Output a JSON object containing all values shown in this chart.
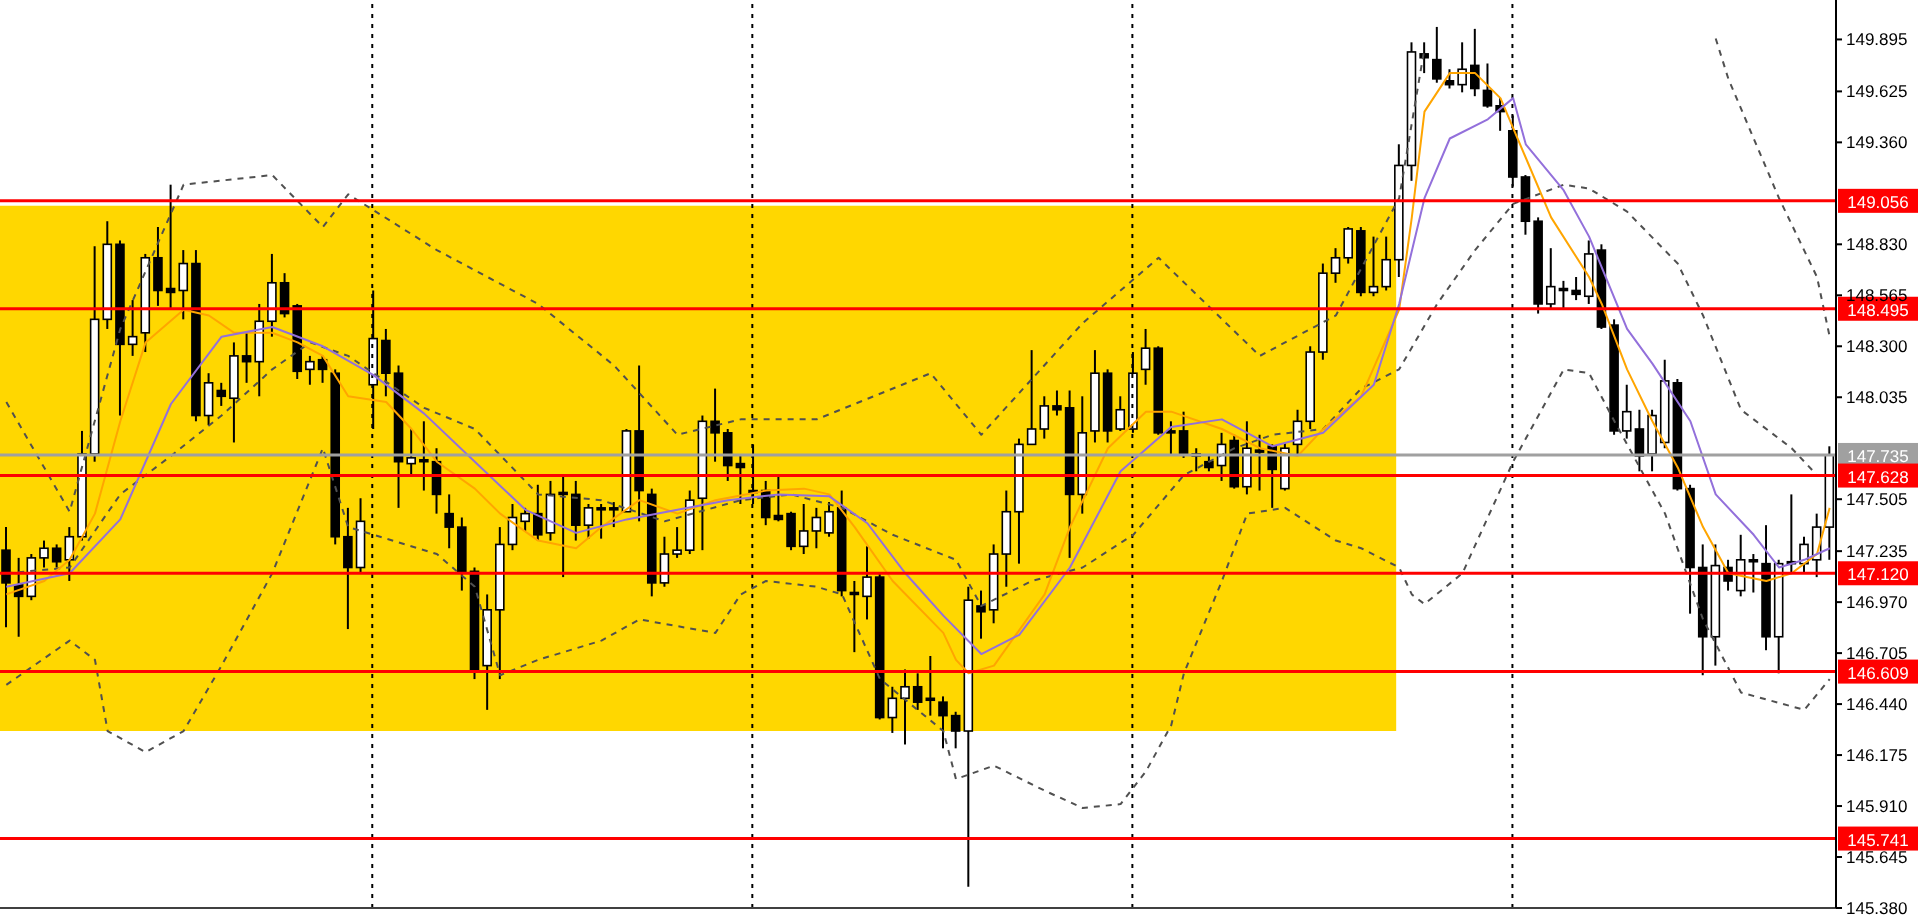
{
  "chart_data": {
    "type": "candlestick",
    "color": "#000000",
    "tick_labels": "y",
    "categories": [
      null,
      null,
      null,
      null,
      null,
      null,
      null,
      null,
      null,
      null,
      null,
      null,
      null,
      null,
      null,
      null,
      null,
      null,
      null,
      null,
      null,
      null,
      null,
      null,
      null,
      null,
      null,
      null,
      null,
      null,
      null,
      null,
      null,
      null,
      null,
      null,
      null,
      null,
      null,
      null,
      null,
      null,
      null,
      null,
      null,
      null,
      null,
      null,
      null,
      null,
      null,
      null,
      null,
      null,
      null,
      null,
      null,
      null,
      null,
      null,
      null,
      null,
      null,
      null,
      null,
      null,
      null,
      null,
      null,
      null,
      null,
      null,
      null,
      null,
      null,
      null,
      null,
      null,
      null,
      null,
      null,
      null,
      null,
      null,
      null,
      null,
      null,
      null,
      null,
      null,
      null,
      null,
      null,
      null,
      null,
      null,
      null,
      null,
      null,
      null,
      null,
      null,
      null,
      null,
      null,
      null,
      null,
      null,
      null,
      null,
      null,
      null,
      null,
      null,
      null,
      null,
      null,
      null,
      null,
      null,
      null,
      null,
      null,
      null,
      null,
      null,
      null,
      null,
      null,
      null,
      null,
      null,
      null,
      null,
      null,
      null,
      null,
      null,
      null,
      null,
      null,
      null,
      null,
      null,
      null
    ],
    "ohlc": [
      [
        147.24,
        147.36,
        146.84,
        147.07
      ],
      [
        147.06,
        147.2,
        146.79,
        147.0
      ],
      [
        147.0,
        147.22,
        146.98,
        147.2
      ],
      [
        147.2,
        147.29,
        147.15,
        147.25
      ],
      [
        147.25,
        147.27,
        147.15,
        147.18
      ],
      [
        147.19,
        147.36,
        147.08,
        147.31
      ],
      [
        147.31,
        147.86,
        147.29,
        147.74
      ],
      [
        147.74,
        148.82,
        147.7,
        148.44
      ],
      [
        148.44,
        148.95,
        148.39,
        148.83
      ],
      [
        148.83,
        148.85,
        147.94,
        148.31
      ],
      [
        148.31,
        148.54,
        148.25,
        148.35
      ],
      [
        148.37,
        148.78,
        148.27,
        148.76
      ],
      [
        148.76,
        148.92,
        148.51,
        148.59
      ],
      [
        148.6,
        149.14,
        148.49,
        148.58
      ],
      [
        148.59,
        148.8,
        148.44,
        148.73
      ],
      [
        148.73,
        148.8,
        147.91,
        147.94
      ],
      [
        147.94,
        148.16,
        147.89,
        148.11
      ],
      [
        148.07,
        148.11,
        147.99,
        148.04
      ],
      [
        148.03,
        148.32,
        147.8,
        148.25
      ],
      [
        148.25,
        148.37,
        148.11,
        148.22
      ],
      [
        148.22,
        148.52,
        148.04,
        148.43
      ],
      [
        148.43,
        148.78,
        148.35,
        148.63
      ],
      [
        148.63,
        148.68,
        148.45,
        148.47
      ],
      [
        148.51,
        148.52,
        148.13,
        148.17
      ],
      [
        148.18,
        148.25,
        148.1,
        148.22
      ],
      [
        148.23,
        148.25,
        148.11,
        148.18
      ],
      [
        148.16,
        148.18,
        147.27,
        147.31
      ],
      [
        147.31,
        147.46,
        146.83,
        147.15
      ],
      [
        147.15,
        147.51,
        147.12,
        147.39
      ],
      [
        148.1,
        148.59,
        147.87,
        148.34
      ],
      [
        148.33,
        148.39,
        148.04,
        148.16
      ],
      [
        148.16,
        148.2,
        147.46,
        147.7
      ],
      [
        147.69,
        147.87,
        147.63,
        147.72
      ],
      [
        147.71,
        147.91,
        147.55,
        147.7
      ],
      [
        147.7,
        147.77,
        147.43,
        147.53
      ],
      [
        147.43,
        147.53,
        147.25,
        147.36
      ],
      [
        147.36,
        147.41,
        147.03,
        147.13
      ],
      [
        147.13,
        147.15,
        146.57,
        146.62
      ],
      [
        146.64,
        147.01,
        146.41,
        146.93
      ],
      [
        146.93,
        147.36,
        146.57,
        147.27
      ],
      [
        147.27,
        147.48,
        147.24,
        147.41
      ],
      [
        147.39,
        147.46,
        147.34,
        147.43
      ],
      [
        147.43,
        147.58,
        147.29,
        147.32
      ],
      [
        147.33,
        147.6,
        147.29,
        147.53
      ],
      [
        147.54,
        147.63,
        147.1,
        147.53
      ],
      [
        147.53,
        147.6,
        147.29,
        147.37
      ],
      [
        147.37,
        147.48,
        147.3,
        147.46
      ],
      [
        147.46,
        147.48,
        147.3,
        147.45
      ],
      [
        147.46,
        147.49,
        147.36,
        147.45
      ],
      [
        147.44,
        147.87,
        147.44,
        147.86
      ],
      [
        147.86,
        148.2,
        147.39,
        147.55
      ],
      [
        147.53,
        147.56,
        147.0,
        147.07
      ],
      [
        147.07,
        147.31,
        147.05,
        147.22
      ],
      [
        147.22,
        147.36,
        147.2,
        147.24
      ],
      [
        147.24,
        147.55,
        147.22,
        147.5
      ],
      [
        147.51,
        147.94,
        147.24,
        147.91
      ],
      [
        147.91,
        148.08,
        147.7,
        147.85
      ],
      [
        147.85,
        147.87,
        147.6,
        147.68
      ],
      [
        147.69,
        147.73,
        147.48,
        147.67
      ],
      [
        147.55,
        147.79,
        147.48,
        147.54
      ],
      [
        147.55,
        147.6,
        147.37,
        147.41
      ],
      [
        147.42,
        147.63,
        147.39,
        147.4
      ],
      [
        147.43,
        147.44,
        147.24,
        147.26
      ],
      [
        147.26,
        147.48,
        147.22,
        147.34
      ],
      [
        147.34,
        147.46,
        147.25,
        147.41
      ],
      [
        147.33,
        147.49,
        147.31,
        147.44
      ],
      [
        147.46,
        147.55,
        147.0,
        147.03
      ],
      [
        147.02,
        147.08,
        146.71,
        147.01
      ],
      [
        147.0,
        147.26,
        146.88,
        147.1
      ],
      [
        147.1,
        147.12,
        146.36,
        146.37
      ],
      [
        146.37,
        146.53,
        146.29,
        146.47
      ],
      [
        146.47,
        146.62,
        146.23,
        146.53
      ],
      [
        146.53,
        146.6,
        146.41,
        146.45
      ],
      [
        146.47,
        146.69,
        146.38,
        146.46
      ],
      [
        146.45,
        146.48,
        146.21,
        146.38
      ],
      [
        146.38,
        146.4,
        146.21,
        146.3
      ],
      [
        146.3,
        147.05,
        145.49,
        146.98
      ],
      [
        146.95,
        147.03,
        146.78,
        146.92
      ],
      [
        146.93,
        147.27,
        146.86,
        147.22
      ],
      [
        147.22,
        147.55,
        147.05,
        147.44
      ],
      [
        147.44,
        147.82,
        147.17,
        147.79
      ],
      [
        147.79,
        148.28,
        147.79,
        147.87
      ],
      [
        147.87,
        148.04,
        147.82,
        147.99
      ],
      [
        147.99,
        148.07,
        147.94,
        147.97
      ],
      [
        147.98,
        148.07,
        147.2,
        147.53
      ],
      [
        147.53,
        148.04,
        147.43,
        147.85
      ],
      [
        147.86,
        148.28,
        147.8,
        148.16
      ],
      [
        148.16,
        148.18,
        147.8,
        147.86
      ],
      [
        147.87,
        148.04,
        147.86,
        147.97
      ],
      [
        147.87,
        148.27,
        147.85,
        148.16
      ],
      [
        148.18,
        148.39,
        148.1,
        148.29
      ],
      [
        148.29,
        148.3,
        147.84,
        147.85
      ],
      [
        147.86,
        147.91,
        147.74,
        147.85
      ],
      [
        147.86,
        147.96,
        147.72,
        147.74
      ],
      [
        147.74,
        147.77,
        147.65,
        147.73
      ],
      [
        147.7,
        147.73,
        147.65,
        147.67
      ],
      [
        147.68,
        147.85,
        147.6,
        147.79
      ],
      [
        147.81,
        147.84,
        147.56,
        147.57
      ],
      [
        147.57,
        147.91,
        147.53,
        147.77
      ],
      [
        147.76,
        147.84,
        147.55,
        147.75
      ],
      [
        147.78,
        147.79,
        147.46,
        147.66
      ],
      [
        147.56,
        147.8,
        147.55,
        147.77
      ],
      [
        147.79,
        147.97,
        147.74,
        147.91
      ],
      [
        147.91,
        148.3,
        147.87,
        148.27
      ],
      [
        148.27,
        148.73,
        148.23,
        148.68
      ],
      [
        148.68,
        148.81,
        148.63,
        148.76
      ],
      [
        148.76,
        148.92,
        148.73,
        148.91
      ],
      [
        148.9,
        148.92,
        148.56,
        148.58
      ],
      [
        148.58,
        148.87,
        148.56,
        148.61
      ],
      [
        148.61,
        148.87,
        148.59,
        148.75
      ],
      [
        148.75,
        149.35,
        148.66,
        149.24
      ],
      [
        149.24,
        149.88,
        149.16,
        149.83
      ],
      [
        149.82,
        149.88,
        149.72,
        149.8
      ],
      [
        149.79,
        149.96,
        149.67,
        149.69
      ],
      [
        149.68,
        149.74,
        149.64,
        149.66
      ],
      [
        149.66,
        149.88,
        149.62,
        149.74
      ],
      [
        149.76,
        149.95,
        149.6,
        149.64
      ],
      [
        149.63,
        149.77,
        149.54,
        149.55
      ],
      [
        149.55,
        149.59,
        149.42,
        149.52
      ],
      [
        149.42,
        149.5,
        149.13,
        149.18
      ],
      [
        149.18,
        149.19,
        148.88,
        148.95
      ],
      [
        148.95,
        148.97,
        148.47,
        148.52
      ],
      [
        148.52,
        148.81,
        148.49,
        148.61
      ],
      [
        148.6,
        148.64,
        148.49,
        148.59
      ],
      [
        148.59,
        148.66,
        148.54,
        148.57
      ],
      [
        148.56,
        148.85,
        148.52,
        148.78
      ],
      [
        148.8,
        148.83,
        148.39,
        148.4
      ],
      [
        148.41,
        148.44,
        147.84,
        147.86
      ],
      [
        147.86,
        148.1,
        147.82,
        147.96
      ],
      [
        147.87,
        147.97,
        147.65,
        147.73
      ],
      [
        147.74,
        147.97,
        147.65,
        147.94
      ],
      [
        147.8,
        148.23,
        147.77,
        148.12
      ],
      [
        148.11,
        148.13,
        147.55,
        147.56
      ],
      [
        147.56,
        147.58,
        146.91,
        147.15
      ],
      [
        147.15,
        147.27,
        146.59,
        146.79
      ],
      [
        146.79,
        147.27,
        146.64,
        147.16
      ],
      [
        147.15,
        147.19,
        147.03,
        147.08
      ],
      [
        147.03,
        147.32,
        147.0,
        147.19
      ],
      [
        147.19,
        147.22,
        147.02,
        147.18
      ],
      [
        147.17,
        147.37,
        146.72,
        146.79
      ],
      [
        146.79,
        147.19,
        146.6,
        147.17
      ],
      [
        147.18,
        147.53,
        147.12,
        147.17
      ],
      [
        147.17,
        147.31,
        147.12,
        147.27
      ],
      [
        147.19,
        147.43,
        147.1,
        147.36
      ],
      [
        147.36,
        147.78,
        147.19,
        147.735
      ]
    ],
    "series": [
      {
        "type": "line",
        "color": "#505050",
        "line_style": "dashed",
        "values": [
          148.01,
          null,
          null,
          null,
          null,
          147.44,
          null,
          null,
          null,
          148.39,
          null,
          null,
          null,
          null,
          149.14,
          null,
          null,
          null,
          null,
          null,
          null,
          149.19,
          null,
          null,
          null,
          148.92,
          null,
          149.09,
          null,
          null,
          null,
          null,
          null,
          null,
          148.8,
          null,
          null,
          null,
          null,
          null,
          null,
          null,
          148.52,
          null,
          null,
          null,
          null,
          null,
          148.2,
          null,
          null,
          null,
          null,
          147.84,
          null,
          null,
          null,
          null,
          147.92,
          null,
          null,
          null,
          null,
          null,
          147.92,
          null,
          null,
          null,
          null,
          null,
          null,
          null,
          null,
          148.16,
          null,
          null,
          null,
          147.84,
          null,
          null,
          null,
          null,
          null,
          null,
          null,
          148.42,
          null,
          null,
          null,
          null,
          null,
          148.76,
          null,
          null,
          null,
          null,
          null,
          null,
          null,
          148.25,
          null,
          null,
          null,
          null,
          null,
          148.46,
          null,
          null,
          null,
          null,
          149.07,
          null,
          149.85,
          null,
          null,
          null,
          null,
          null,
          null,
          null,
          null,
          null,
          null,
          null,
          null,
          null,
          null,
          null,
          null,
          null,
          null,
          null,
          null,
          null,
          null,
          null,
          null,
          null,
          null,
          null,
          null,
          null,
          null,
          null,
          null
        ]
      },
      {
        "type": "line",
        "color": "#505050",
        "line_style": "dashed",
        "values": [
          null,
          null,
          null,
          null,
          null,
          null,
          null,
          null,
          null,
          null,
          null,
          null,
          null,
          null,
          null,
          null,
          null,
          null,
          null,
          null,
          null,
          null,
          null,
          null,
          null,
          null,
          null,
          null,
          null,
          null,
          null,
          null,
          null,
          null,
          null,
          null,
          null,
          null,
          null,
          null,
          null,
          null,
          null,
          null,
          null,
          null,
          null,
          null,
          null,
          null,
          null,
          null,
          null,
          null,
          null,
          null,
          null,
          null,
          null,
          null,
          null,
          null,
          null,
          null,
          null,
          null,
          null,
          null,
          null,
          null,
          null,
          null,
          null,
          null,
          null,
          null,
          null,
          null,
          null,
          null,
          null,
          null,
          null,
          null,
          null,
          null,
          null,
          null,
          null,
          null,
          null,
          null,
          null,
          null,
          null,
          null,
          null,
          null,
          null,
          null,
          null,
          null,
          null,
          null,
          null,
          null,
          null,
          null,
          null,
          null,
          null,
          null,
          null,
          null,
          null,
          null,
          null,
          null,
          null,
          null,
          null,
          null,
          null,
          null,
          null,
          null,
          null,
          null,
          null,
          null,
          null,
          null,
          null,
          null,
          null,
          149.9,
          149.69,
          null,
          null,
          null,
          149.07,
          null,
          null,
          148.66,
          148.35
        ]
      },
      {
        "type": "line",
        "color": "#505050",
        "line_style": "dashed",
        "values": [
          147.12,
          null,
          null,
          null,
          null,
          147.15,
          null,
          null,
          null,
          147.53,
          null,
          null,
          null,
          147.73,
          null,
          null,
          null,
          147.94,
          null,
          null,
          null,
          148.18,
          null,
          null,
          148.32,
          null,
          null,
          148.25,
          null,
          null,
          null,
          null,
          null,
          147.98,
          null,
          null,
          null,
          147.87,
          null,
          null,
          null,
          null,
          147.53,
          null,
          null,
          null,
          null,
          147.5,
          null,
          null,
          null,
          null,
          147.39,
          null,
          null,
          null,
          null,
          null,
          147.5,
          null,
          null,
          null,
          147.53,
          null,
          null,
          null,
          147.46,
          null,
          null,
          null,
          147.32,
          null,
          null,
          null,
          null,
          147.19,
          null,
          146.95,
          null,
          null,
          null,
          147.08,
          null,
          null,
          null,
          147.15,
          null,
          null,
          null,
          147.32,
          null,
          null,
          null,
          147.63,
          null,
          null,
          null,
          147.77,
          null,
          null,
          147.84,
          null,
          null,
          null,
          147.87,
          null,
          null,
          148.08,
          null,
          null,
          148.18,
          null,
          null,
          148.52,
          null,
          null,
          148.8,
          null,
          null,
          149.04,
          null,
          null,
          null,
          149.14,
          null,
          149.12,
          null,
          null,
          149.0,
          null,
          null,
          null,
          148.73,
          null,
          148.46,
          null,
          null,
          147.97,
          null,
          null,
          null,
          147.77,
          null,
          147.63,
          null
        ]
      },
      {
        "type": "line",
        "color": "#505050",
        "line_style": "dashed",
        "values": [
          146.54,
          null,
          null,
          null,
          null,
          146.77,
          null,
          146.67,
          146.3,
          null,
          null,
          146.19,
          null,
          null,
          146.3,
          null,
          null,
          146.64,
          null,
          null,
          null,
          147.12,
          null,
          null,
          null,
          147.77,
          null,
          147.36,
          null,
          null,
          null,
          null,
          null,
          null,
          147.22,
          null,
          null,
          147.05,
          null,
          146.59,
          null,
          null,
          146.67,
          null,
          null,
          null,
          null,
          146.77,
          null,
          null,
          146.88,
          null,
          null,
          null,
          null,
          null,
          146.81,
          null,
          147.01,
          null,
          147.08,
          null,
          null,
          null,
          147.05,
          null,
          147.01,
          null,
          null,
          146.57,
          null,
          null,
          null,
          null,
          146.3,
          146.05,
          null,
          null,
          146.12,
          null,
          null,
          null,
          145.99,
          null,
          null,
          145.9,
          null,
          null,
          145.92,
          null,
          146.09,
          null,
          146.33,
          146.6,
          null,
          null,
          147.08,
          null,
          147.43,
          null,
          null,
          147.46,
          null,
          null,
          null,
          147.29,
          null,
          147.25,
          null,
          null,
          147.15,
          147.01,
          146.96,
          null,
          null,
          147.12,
          null,
          null,
          null,
          147.7,
          null,
          null,
          null,
          148.18,
          null,
          148.16,
          null,
          147.91,
          null,
          null,
          null,
          147.43,
          null,
          null,
          146.88,
          null,
          null,
          146.5,
          null,
          null,
          null,
          null,
          146.41,
          null,
          146.57
        ]
      },
      {
        "type": "line",
        "color": "#ffa500",
        "line_style": "solid",
        "values": [
          147.01,
          null,
          null,
          147.08,
          null,
          147.19,
          null,
          147.43,
          null,
          147.91,
          null,
          148.32,
          null,
          null,
          148.49,
          null,
          148.46,
          null,
          148.37,
          null,
          null,
          148.37,
          null,
          148.32,
          null,
          148.25,
          null,
          148.04,
          null,
          null,
          148.01,
          null,
          147.87,
          null,
          147.7,
          null,
          null,
          147.56,
          null,
          147.43,
          null,
          null,
          147.29,
          null,
          null,
          147.25,
          null,
          147.36,
          null,
          null,
          147.5,
          null,
          null,
          147.43,
          null,
          null,
          147.5,
          null,
          null,
          null,
          147.55,
          null,
          null,
          147.56,
          null,
          147.53,
          null,
          147.36,
          null,
          null,
          147.08,
          null,
          null,
          null,
          146.81,
          146.67,
          146.6,
          null,
          146.64,
          null,
          null,
          null,
          147.01,
          null,
          147.36,
          null,
          null,
          147.77,
          null,
          null,
          147.96,
          null,
          147.96,
          null,
          null,
          null,
          147.87,
          null,
          null,
          147.77,
          null,
          null,
          147.73,
          null,
          147.87,
          null,
          null,
          148.04,
          null,
          null,
          148.49,
          148.97,
          149.52,
          null,
          149.72,
          null,
          149.72,
          null,
          149.59,
          null,
          149.28,
          null,
          148.97,
          null,
          null,
          148.66,
          148.52,
          null,
          148.18,
          null,
          147.91,
          null,
          147.67,
          null,
          147.36,
          null,
          147.12,
          null,
          null,
          147.08,
          null,
          147.12,
          null,
          147.22,
          147.46
        ]
      },
      {
        "type": "line",
        "color": "#9370db",
        "line_style": "solid",
        "values": [
          147.05,
          null,
          null,
          null,
          null,
          147.12,
          null,
          null,
          null,
          147.4,
          null,
          null,
          null,
          148.0,
          null,
          null,
          null,
          148.35,
          null,
          null,
          null,
          148.4,
          null,
          null,
          null,
          148.3,
          null,
          null,
          null,
          148.15,
          null,
          null,
          null,
          147.95,
          null,
          null,
          null,
          147.7,
          null,
          null,
          null,
          147.45,
          null,
          null,
          null,
          147.33,
          null,
          null,
          null,
          147.4,
          null,
          null,
          null,
          147.45,
          null,
          null,
          null,
          147.5,
          null,
          null,
          null,
          147.53,
          null,
          null,
          null,
          147.52,
          null,
          null,
          147.38,
          null,
          null,
          147.12,
          null,
          null,
          146.9,
          null,
          null,
          146.7,
          null,
          null,
          146.8,
          null,
          null,
          null,
          147.15,
          null,
          null,
          null,
          147.65,
          null,
          null,
          null,
          147.88,
          null,
          null,
          null,
          147.92,
          null,
          null,
          null,
          147.78,
          null,
          null,
          null,
          147.85,
          null,
          null,
          null,
          148.1,
          null,
          148.52,
          null,
          149.07,
          null,
          149.38,
          null,
          null,
          149.48,
          null,
          149.59,
          149.35,
          null,
          null,
          149.11,
          null,
          148.87,
          null,
          null,
          148.39,
          null,
          148.21,
          null,
          null,
          147.91,
          null,
          147.53,
          null,
          null,
          147.32,
          null,
          147.15,
          null,
          147.19,
          null,
          147.25
        ]
      }
    ],
    "ylim": [
      145.38,
      150.1
    ],
    "yticks": [
      {
        "value": 145.38,
        "label": "145.380"
      },
      {
        "value": 145.645,
        "label": "145.645"
      },
      {
        "value": 145.91,
        "label": "145.910"
      },
      {
        "value": 146.175,
        "label": "146.175"
      },
      {
        "value": 146.44,
        "label": "146.440"
      },
      {
        "value": 146.705,
        "label": "146.705"
      },
      {
        "value": 146.97,
        "label": "146.970"
      },
      {
        "value": 147.235,
        "label": "147.235"
      },
      {
        "value": 147.505,
        "label": "147.505"
      },
      {
        "value": 148.035,
        "label": "148.035"
      },
      {
        "value": 148.3,
        "label": "148.300"
      },
      {
        "value": 148.565,
        "label": "148.565"
      },
      {
        "value": 148.83,
        "label": "148.830"
      },
      {
        "value": 149.36,
        "label": "149.360"
      },
      {
        "value": 149.625,
        "label": "149.625"
      },
      {
        "value": 149.895,
        "label": "149.895"
      }
    ],
    "bands": [
      {
        "axis": "y",
        "from": 146.3,
        "to": 149.03,
        "color": "#ffd700"
      }
    ],
    "ref_lines": [
      {
        "axis": "y",
        "value": 149.056,
        "label": "149.056",
        "color": "#ff0000"
      },
      {
        "axis": "y",
        "value": 148.495,
        "label": "148.495",
        "color": "#ff0000"
      },
      {
        "axis": "y",
        "value": 147.735,
        "label": "147.735",
        "color": "#a0a0a0"
      },
      {
        "axis": "y",
        "value": 147.628,
        "label": "147.628",
        "color": "#ff0000"
      },
      {
        "axis": "y",
        "value": 147.12,
        "label": "147.120",
        "color": "#ff0000"
      },
      {
        "axis": "y",
        "value": 146.609,
        "label": "146.609",
        "color": "#ff0000"
      },
      {
        "axis": "y",
        "value": 145.741,
        "label": "145.741",
        "color": "#ff0000"
      }
    ]
  }
}
